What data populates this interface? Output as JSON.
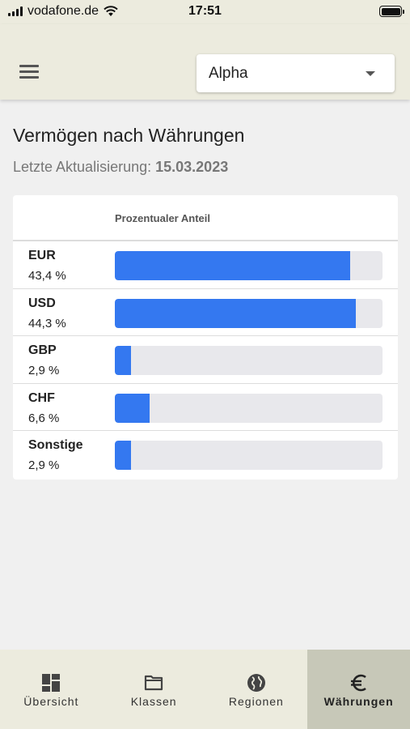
{
  "status_bar": {
    "carrier": "vodafone.de",
    "time": "17:51"
  },
  "app_bar": {
    "portfolio_select": {
      "value": "Alpha"
    }
  },
  "page": {
    "title": "Vermögen nach Währungen",
    "update_label": "Letzte Aktualisierung:",
    "update_date": "15.03.2023"
  },
  "table": {
    "column_header": "Prozentualer Anteil",
    "rows": [
      {
        "name": "EUR",
        "percent": "43,4 %",
        "bar_fraction": 0.88
      },
      {
        "name": "USD",
        "percent": "44,3 %",
        "bar_fraction": 0.9
      },
      {
        "name": "GBP",
        "percent": "2,9 %",
        "bar_fraction": 0.06
      },
      {
        "name": "CHF",
        "percent": "6,6 %",
        "bar_fraction": 0.13
      },
      {
        "name": "Sonstige",
        "percent": "2,9 %",
        "bar_fraction": 0.06
      }
    ]
  },
  "tabs": [
    {
      "label": "Übersicht",
      "icon": "dashboard-icon",
      "active": false
    },
    {
      "label": "Klassen",
      "icon": "folder-icon",
      "active": false
    },
    {
      "label": "Regionen",
      "icon": "globe-icon",
      "active": false
    },
    {
      "label": "Währungen",
      "icon": "euro-icon",
      "active": true
    }
  ],
  "colors": {
    "accent": "#3478f0",
    "bar_track": "#e8e8ec",
    "chrome": "#ecebde",
    "active_tab": "#c7c8b8"
  }
}
